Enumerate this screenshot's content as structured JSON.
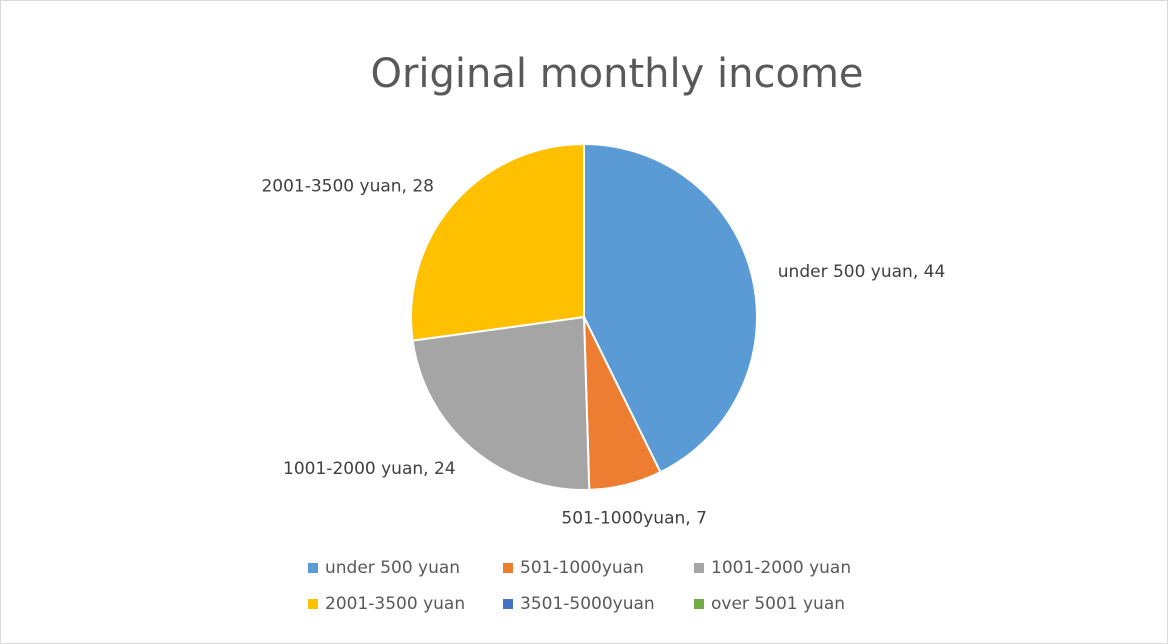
{
  "chart_data": {
    "type": "pie",
    "title": "Original monthly income",
    "categories": [
      "under 500 yuan",
      "501-1000yuan",
      "1001-2000 yuan",
      "2001-3500 yuan",
      "3501-5000yuan",
      "over 5001 yuan"
    ],
    "values": [
      44,
      7,
      24,
      28,
      0,
      0
    ],
    "value_labels": [
      "under 500 yuan, 44",
      "501-1000yuan, 7",
      "1001-2000 yuan, 24",
      "2001-3500 yuan, 28",
      null,
      null
    ],
    "colors": [
      "#5b9bd5",
      "#ed7d31",
      "#a5a5a5",
      "#ffc000",
      "#4472c4",
      "#70ad47"
    ],
    "legend": "bottom"
  }
}
